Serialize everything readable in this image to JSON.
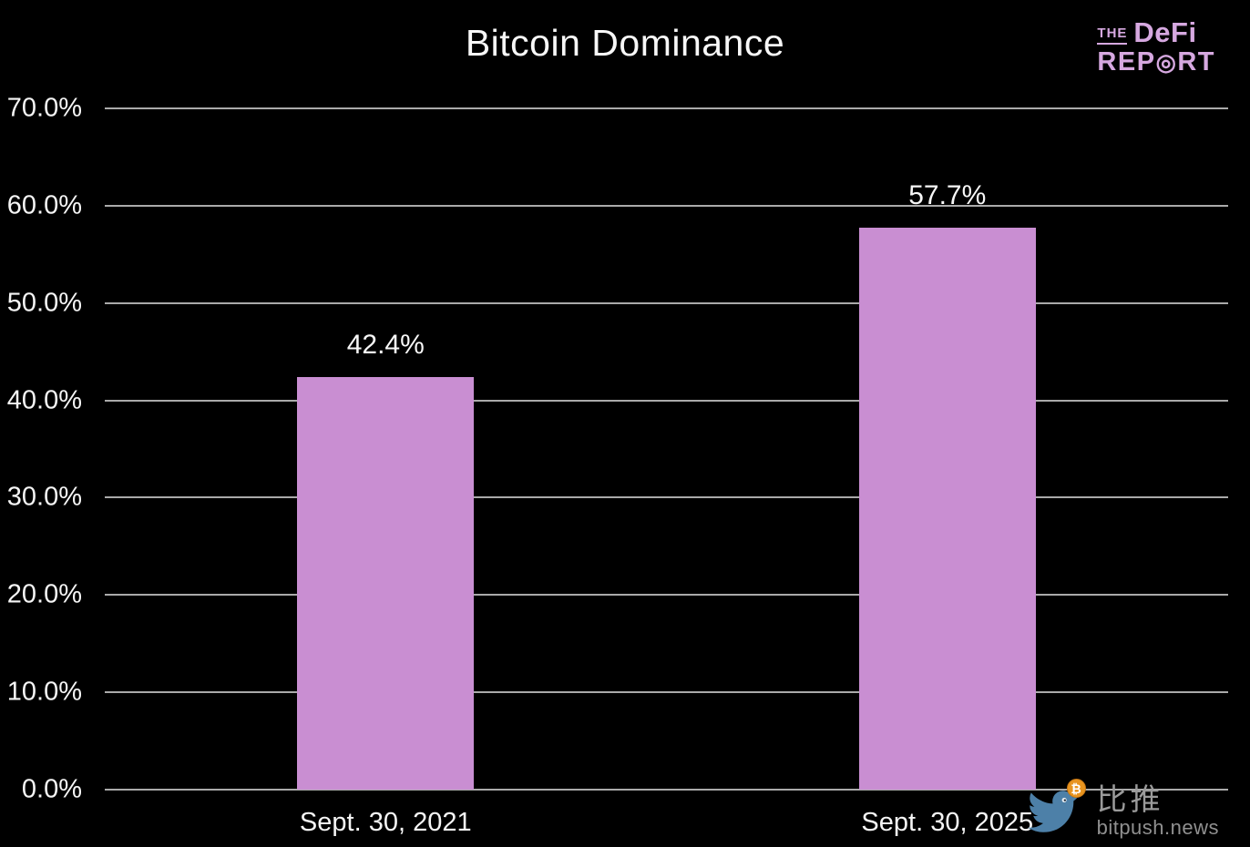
{
  "title": "Bitcoin Dominance",
  "logo": {
    "the": "THE",
    "defi": "DeFi",
    "rep": "REP",
    "bullseye": "◎",
    "rt": "RT",
    "color": "#d6a8e0"
  },
  "chart_data": {
    "type": "bar",
    "title": "Bitcoin Dominance",
    "categories": [
      "Sept. 30, 2021",
      "Sept. 30, 2025"
    ],
    "values": [
      42.4,
      57.7
    ],
    "value_labels": [
      "42.4%",
      "57.7%"
    ],
    "xlabel": "",
    "ylabel": "",
    "ylim": [
      0,
      70
    ],
    "ytick_step": 10,
    "ytick_labels": [
      "0.0%",
      "10.0%",
      "20.0%",
      "30.0%",
      "40.0%",
      "50.0%",
      "60.0%",
      "70.0%"
    ],
    "grid": true,
    "legend": false,
    "colors": {
      "background": "#000000",
      "bar": "#c98ed2",
      "gridline": "#aaaaaa",
      "text": "#f5f5f5"
    }
  },
  "watermark": {
    "cjk": "比推",
    "site": "bitpush.news",
    "coin_symbol": "₿",
    "colors": {
      "bird": "#4d80a8",
      "coin": "#e8941f",
      "text": "#9a9a9a"
    }
  }
}
